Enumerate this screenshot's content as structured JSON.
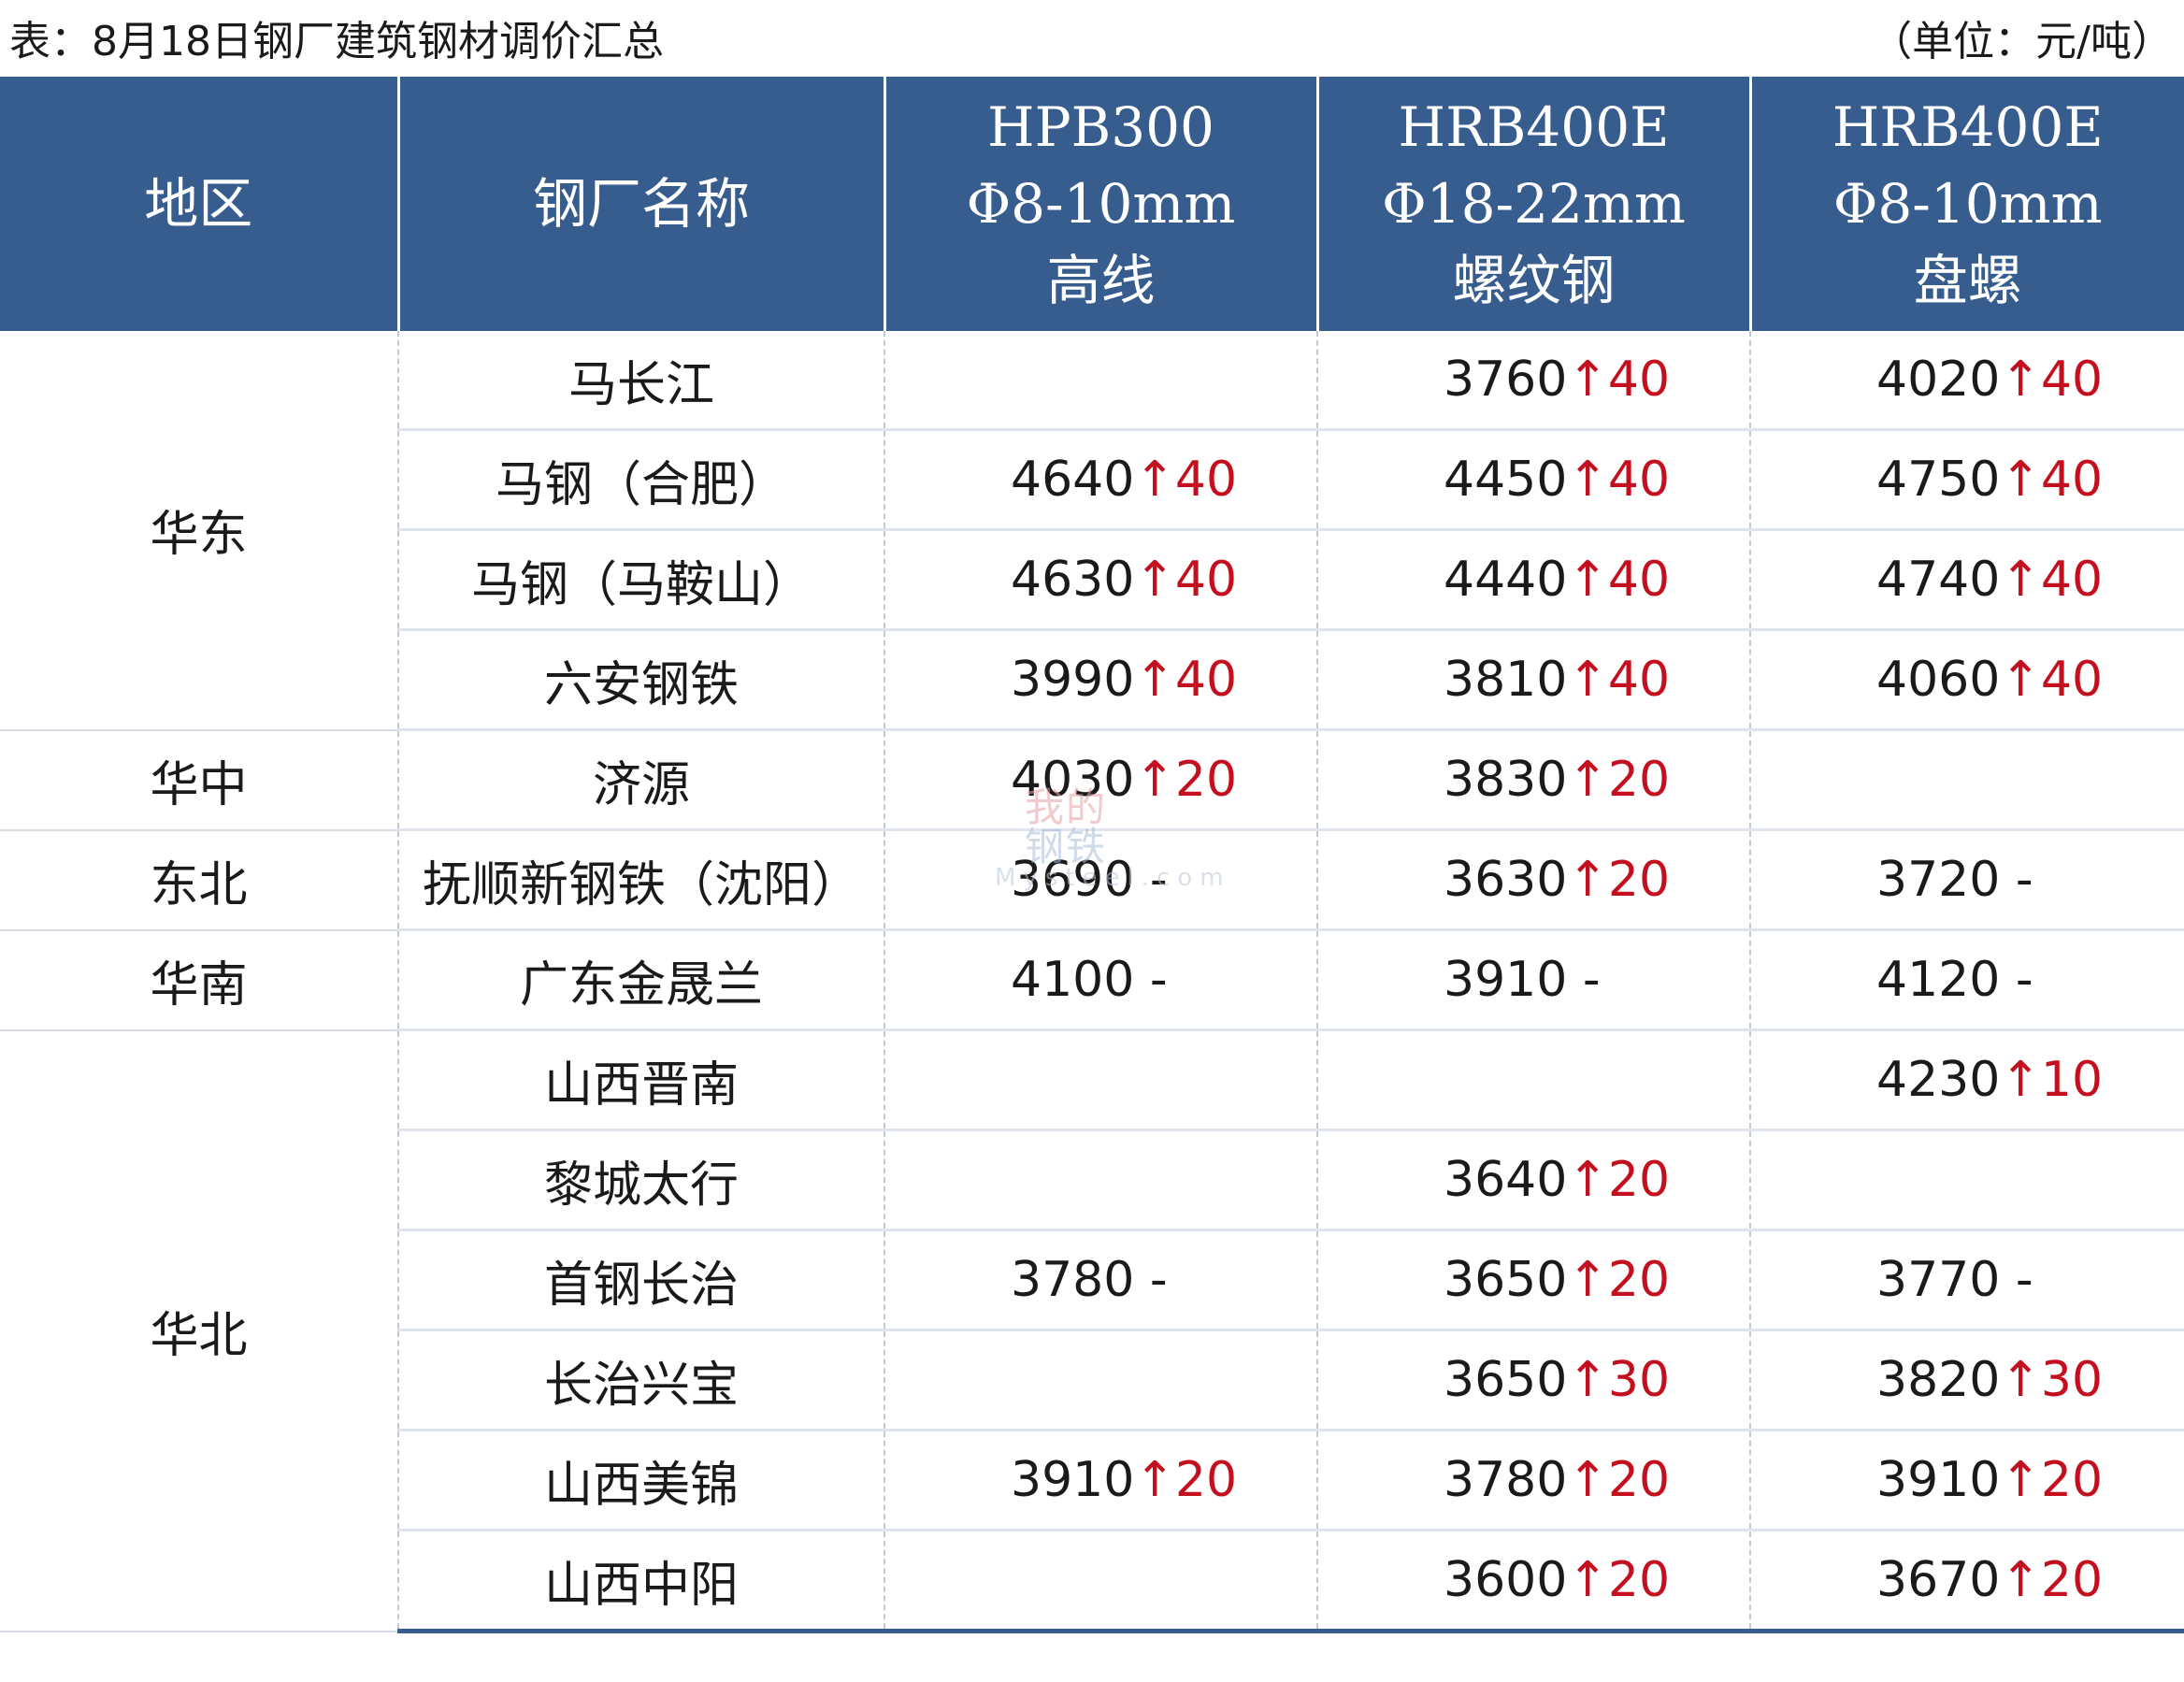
{
  "caption": {
    "title": "表：8月18日钢厂建筑钢材调价汇总",
    "unit": "（单位：元/吨）"
  },
  "header": {
    "region": "地区",
    "mill": "钢厂名称",
    "col1": [
      "HPB300",
      "Φ8-10mm",
      "高线"
    ],
    "col2": [
      "HRB400E",
      "Φ18-22mm",
      "螺纹钢"
    ],
    "col3": [
      "HRB400E",
      "Φ8-10mm",
      "盘螺"
    ]
  },
  "regions": [
    "华东",
    "华中",
    "东北",
    "华南",
    "华北"
  ],
  "rows": [
    {
      "mill": "马长江",
      "hpb": [
        "",
        ""
      ],
      "rebar": [
        "3760",
        "↑40"
      ],
      "coil": [
        "4020",
        "↑40"
      ]
    },
    {
      "mill": "马钢（合肥）",
      "hpb": [
        "4640",
        "↑40"
      ],
      "rebar": [
        "4450",
        "↑40"
      ],
      "coil": [
        "4750",
        "↑40"
      ]
    },
    {
      "mill": "马钢（马鞍山）",
      "hpb": [
        "4630",
        "↑40"
      ],
      "rebar": [
        "4440",
        "↑40"
      ],
      "coil": [
        "4740",
        "↑40"
      ]
    },
    {
      "mill": "六安钢铁",
      "hpb": [
        "3990",
        "↑40"
      ],
      "rebar": [
        "3810",
        "↑40"
      ],
      "coil": [
        "4060",
        "↑40"
      ]
    },
    {
      "mill": "济源",
      "hpb": [
        "4030",
        "↑20"
      ],
      "rebar": [
        "3830",
        "↑20"
      ],
      "coil": [
        "",
        ""
      ]
    },
    {
      "mill": "抚顺新钢铁（沈阳）",
      "hpb": [
        "3690",
        " -"
      ],
      "rebar": [
        "3630",
        "↑20"
      ],
      "coil": [
        "3720",
        " -"
      ]
    },
    {
      "mill": "广东金晟兰",
      "hpb": [
        "4100",
        " -"
      ],
      "rebar": [
        "3910",
        " -"
      ],
      "coil": [
        "4120",
        " -"
      ]
    },
    {
      "mill": "山西晋南",
      "hpb": [
        "",
        ""
      ],
      "rebar": [
        "",
        ""
      ],
      "coil": [
        "4230",
        "↑10"
      ]
    },
    {
      "mill": "黎城太行",
      "hpb": [
        "",
        ""
      ],
      "rebar": [
        "3640",
        "↑20"
      ],
      "coil": [
        "",
        ""
      ]
    },
    {
      "mill": "首钢长治",
      "hpb": [
        "3780",
        " -"
      ],
      "rebar": [
        "3650",
        "↑20"
      ],
      "coil": [
        "3770",
        " -"
      ]
    },
    {
      "mill": "长治兴宝",
      "hpb": [
        "",
        ""
      ],
      "rebar": [
        "3650",
        "↑30"
      ],
      "coil": [
        "3820",
        "↑30"
      ]
    },
    {
      "mill": "山西美锦",
      "hpb": [
        "3910",
        "↑20"
      ],
      "rebar": [
        "3780",
        "↑20"
      ],
      "coil": [
        "3910",
        "↑20"
      ]
    },
    {
      "mill": "山西中阳",
      "hpb": [
        "",
        ""
      ],
      "rebar": [
        "3600",
        "↑20"
      ],
      "coil": [
        "3670",
        "↑20"
      ]
    }
  ],
  "watermark": {
    "line1": "我的",
    "line2": "钢铁",
    "line3": "Mysteel.com"
  },
  "colors": {
    "header_bg": "#375c8e",
    "increase": "#c4101e",
    "text": "#1a1a1a"
  }
}
